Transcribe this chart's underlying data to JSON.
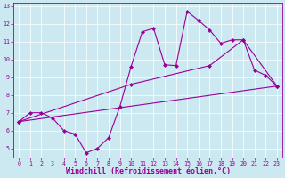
{
  "xlabel": "Windchill (Refroidissement éolien,°C)",
  "bg_color": "#cce8f0",
  "line_color": "#990099",
  "xlim": [
    -0.5,
    23.5
  ],
  "ylim": [
    4.5,
    13.2
  ],
  "xticks": [
    0,
    1,
    2,
    3,
    4,
    5,
    6,
    7,
    8,
    9,
    10,
    11,
    12,
    13,
    14,
    15,
    16,
    17,
    18,
    19,
    20,
    21,
    22,
    23
  ],
  "yticks": [
    5,
    6,
    7,
    8,
    9,
    10,
    11,
    12,
    13
  ],
  "line1_x": [
    0,
    1,
    2,
    3,
    4,
    5,
    6,
    7,
    8,
    9,
    10,
    11,
    12,
    13,
    14,
    15,
    16,
    17,
    18,
    19,
    20,
    21,
    22,
    23
  ],
  "line1_y": [
    6.5,
    7.0,
    7.0,
    6.7,
    6.0,
    5.8,
    4.75,
    5.0,
    5.6,
    7.35,
    9.6,
    11.55,
    11.75,
    9.7,
    9.65,
    12.7,
    12.2,
    11.65,
    10.9,
    11.1,
    11.1,
    9.4,
    9.1,
    8.5
  ],
  "line2_x": [
    0,
    10,
    17,
    20,
    23
  ],
  "line2_y": [
    6.5,
    8.6,
    9.65,
    11.1,
    8.5
  ],
  "line3_x": [
    0,
    23
  ],
  "line3_y": [
    6.5,
    8.5
  ],
  "marker": "D",
  "markersize": 2.0,
  "linewidth": 0.8,
  "tick_fontsize": 4.8,
  "xlabel_fontsize": 6.0
}
